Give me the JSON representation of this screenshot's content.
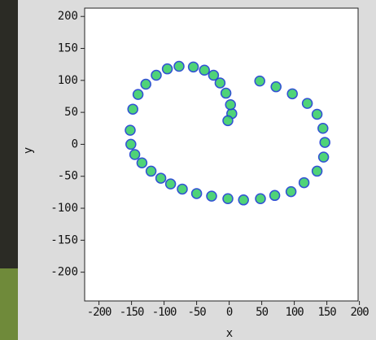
{
  "chart_data": {
    "type": "scatter",
    "x_label": "x",
    "y_label": "y",
    "xlim": [
      -222,
      198
    ],
    "ylim": [
      -245,
      213
    ],
    "xticks": [
      -200,
      -150,
      -100,
      -50,
      0,
      50,
      100,
      150,
      200
    ],
    "yticks": [
      200,
      150,
      100,
      50,
      0,
      -50,
      -100,
      -150,
      -200
    ],
    "series": [
      {
        "color": "#3ccf6a",
        "x": [
          4,
          2,
          -5,
          -14,
          -24,
          -38,
          -55,
          -77,
          -95,
          -112,
          -128,
          -140,
          -148,
          -152,
          -151,
          -145,
          -134,
          -120,
          -105,
          -90,
          -72,
          -50,
          -27,
          -2,
          22,
          48,
          70,
          95,
          115,
          135,
          145,
          147,
          144,
          135,
          120,
          97,
          72,
          47,
          -2
        ],
        "y": [
          48,
          62,
          80,
          96,
          108,
          116,
          121,
          122,
          118,
          108,
          94,
          78,
          55,
          22,
          0,
          -16,
          -29,
          -42,
          -53,
          -62,
          -70,
          -77,
          -81,
          -85,
          -87,
          -85,
          -80,
          -74,
          -60,
          -42,
          -20,
          3,
          25,
          47,
          64,
          79,
          90,
          99,
          37
        ]
      }
    ]
  }
}
